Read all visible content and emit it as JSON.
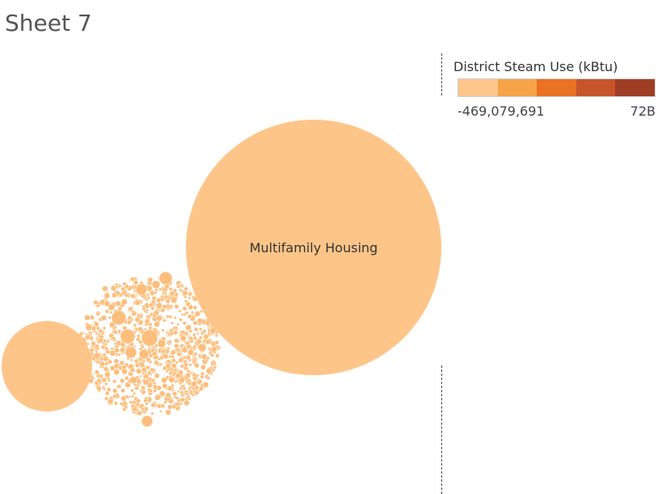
{
  "sheet_title": "Sheet 7",
  "colors": {
    "bubble": "#FEC588",
    "small_bubble": "#FDBE7B",
    "palette": [
      "#FEC68A",
      "#F7A347",
      "#EB7123",
      "#C8552A",
      "#A03D25"
    ]
  },
  "legend": {
    "title": "District Steam Use (kBtu)",
    "min_label": "-469,079,691",
    "max_label": "72B"
  },
  "chart_data": {
    "type": "packed-bubble",
    "title": "Sheet 7",
    "color_measure": "District Steam Use (kBtu)",
    "color_range": [
      "-469,079,691",
      "72B"
    ],
    "bubbles": [
      {
        "label": "Multifamily Housing",
        "relative_size": 1.0
      },
      {
        "label": "",
        "relative_size": 0.35
      },
      {
        "label": "",
        "relative_size": 0.3,
        "note": "cluster of many small bubbles"
      }
    ]
  }
}
